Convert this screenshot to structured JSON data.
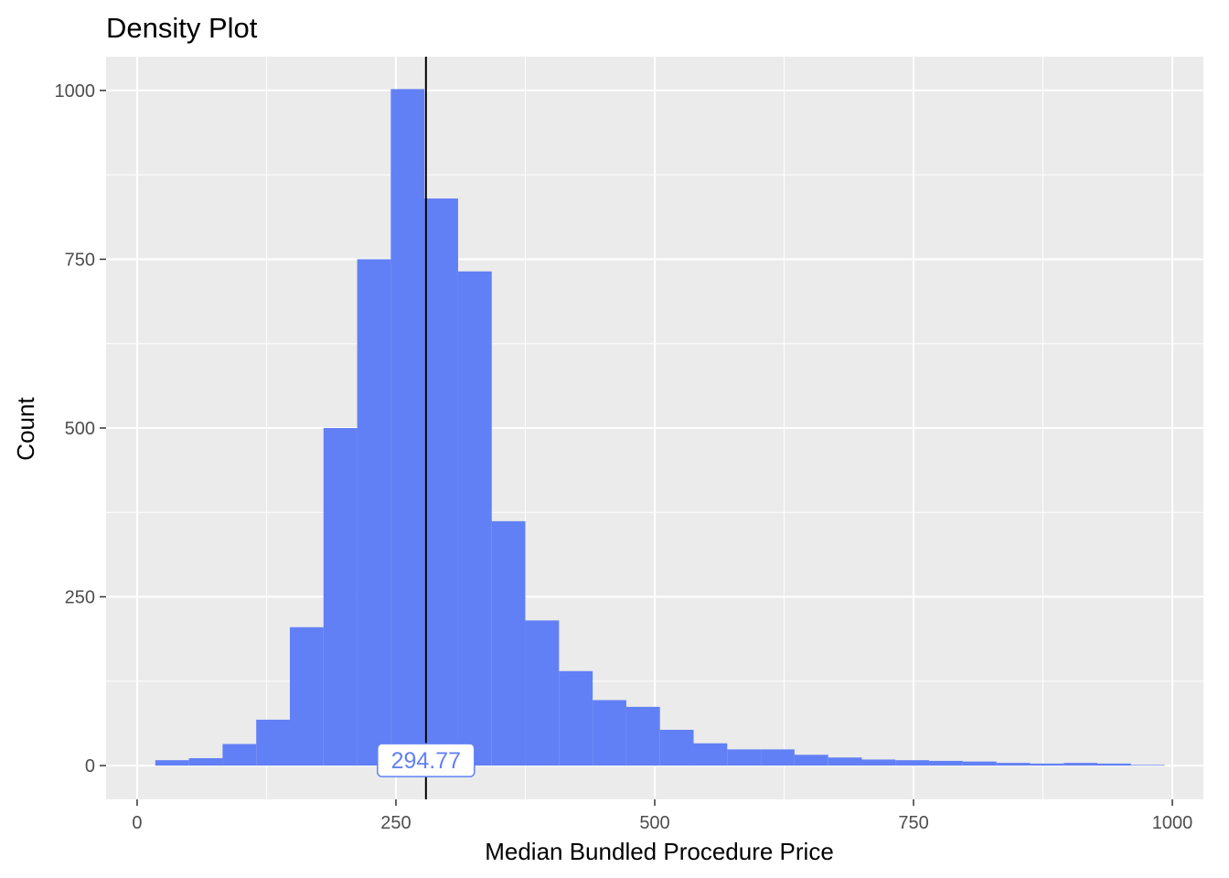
{
  "chart_data": {
    "type": "bar",
    "title": "Density Plot",
    "xlabel": "Median Bundled Procedure Price",
    "ylabel": "Count",
    "xlim": [
      -30,
      1030
    ],
    "ylim": [
      -50,
      1050
    ],
    "x_ticks": [
      0,
      250,
      500,
      750,
      1000
    ],
    "x_tick_labels": [
      "0",
      "250",
      "500",
      "750",
      "1000"
    ],
    "y_ticks": [
      0,
      250,
      500,
      750,
      1000
    ],
    "y_tick_labels": [
      "0",
      "250",
      "500",
      "750",
      "1000"
    ],
    "grid": true,
    "bin_width": 32.5,
    "bin_centers": [
      33.8,
      66.3,
      98.8,
      131.3,
      163.8,
      196.3,
      228.8,
      261.3,
      293.8,
      326.3,
      358.8,
      391.3,
      423.8,
      456.3,
      488.8,
      521.3,
      553.8,
      586.3,
      618.8,
      651.3,
      683.8,
      716.3,
      748.8,
      781.3,
      813.8,
      846.3,
      878.8,
      911.3,
      943.8,
      976.3
    ],
    "values": [
      8,
      11,
      32,
      68,
      205,
      500,
      750,
      1002,
      840,
      732,
      362,
      215,
      140,
      97,
      87,
      53,
      33,
      24,
      24,
      16,
      12,
      9,
      8,
      7,
      6,
      4,
      3,
      4,
      3,
      1
    ],
    "bar_color": "#6280f5",
    "vline": {
      "x": 279,
      "color": "#000000"
    },
    "annotation": {
      "text": "294.77",
      "x": 279,
      "y": 8,
      "color": "#6280f5"
    },
    "panel_background": "#ebebeb",
    "grid_color": "#ffffff"
  }
}
